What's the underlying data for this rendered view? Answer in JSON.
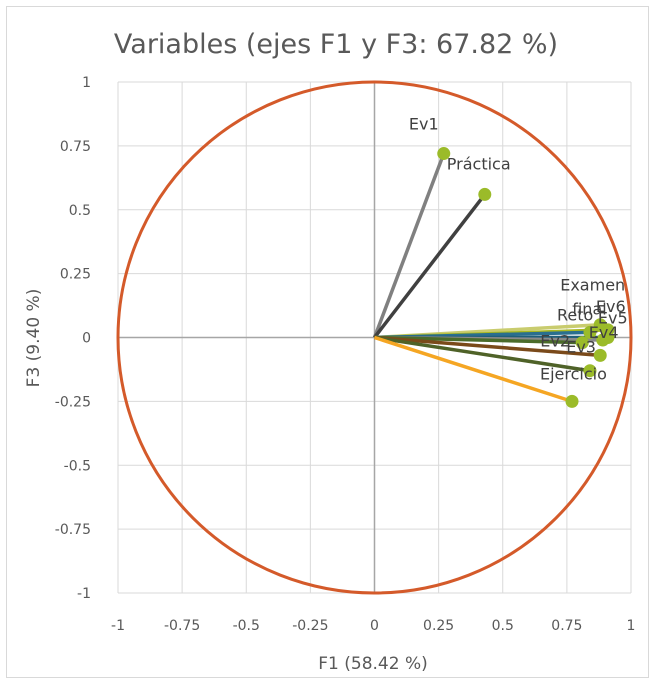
{
  "chart_data": {
    "type": "scatter",
    "subtype": "correlation-circle",
    "title": "Variables (ejes F1 y F3: 67.82 %)",
    "xlabel": "F1 (58.42 %)",
    "ylabel": "F3 (9.40 %)",
    "xlim": [
      -1,
      1
    ],
    "ylim": [
      -1,
      1
    ],
    "x_ticks": [
      "-1",
      "-0.75",
      "-0.5",
      "-0.25",
      "0",
      "0.25",
      "0.5",
      "0.75",
      "1"
    ],
    "y_ticks": [
      "1",
      "0.75",
      "0.5",
      "0.25",
      "0",
      "-0.25",
      "-0.5",
      "-0.75",
      "-1"
    ],
    "grid": true,
    "circle_color": "#d45a2a",
    "point_color": "#9bbb29",
    "variables": [
      {
        "name": "Ev1",
        "x": 0.27,
        "y": 0.72,
        "line_color": "#808080"
      },
      {
        "name": "Práctica",
        "x": 0.43,
        "y": 0.56,
        "line_color": "#404040"
      },
      {
        "name": "Examen final",
        "x": 0.88,
        "y": 0.05,
        "line_color": "#c9cc6e"
      },
      {
        "name": "Ev6",
        "x": 0.91,
        "y": 0.03,
        "line_color": "#a8b820"
      },
      {
        "name": "Reto",
        "x": 0.84,
        "y": 0.02,
        "line_color": "#2a6f8f"
      },
      {
        "name": "Ev5",
        "x": 0.91,
        "y": 0.0,
        "line_color": "#1f5f7a"
      },
      {
        "name": "Ev4",
        "x": 0.89,
        "y": -0.01,
        "line_color": "#8a8a8a"
      },
      {
        "name": "Ev2",
        "x": 0.81,
        "y": -0.02,
        "line_color": "#4a6b2a"
      },
      {
        "name": "Ev3",
        "x": 0.88,
        "y": -0.07,
        "line_color": "#7a4a1a"
      },
      {
        "name": "Ejercicio",
        "x": 0.84,
        "y": -0.13,
        "line_color": "#4f6228"
      },
      {
        "name": "",
        "x": 0.77,
        "y": -0.25,
        "line_color": "#f5a623"
      }
    ]
  }
}
